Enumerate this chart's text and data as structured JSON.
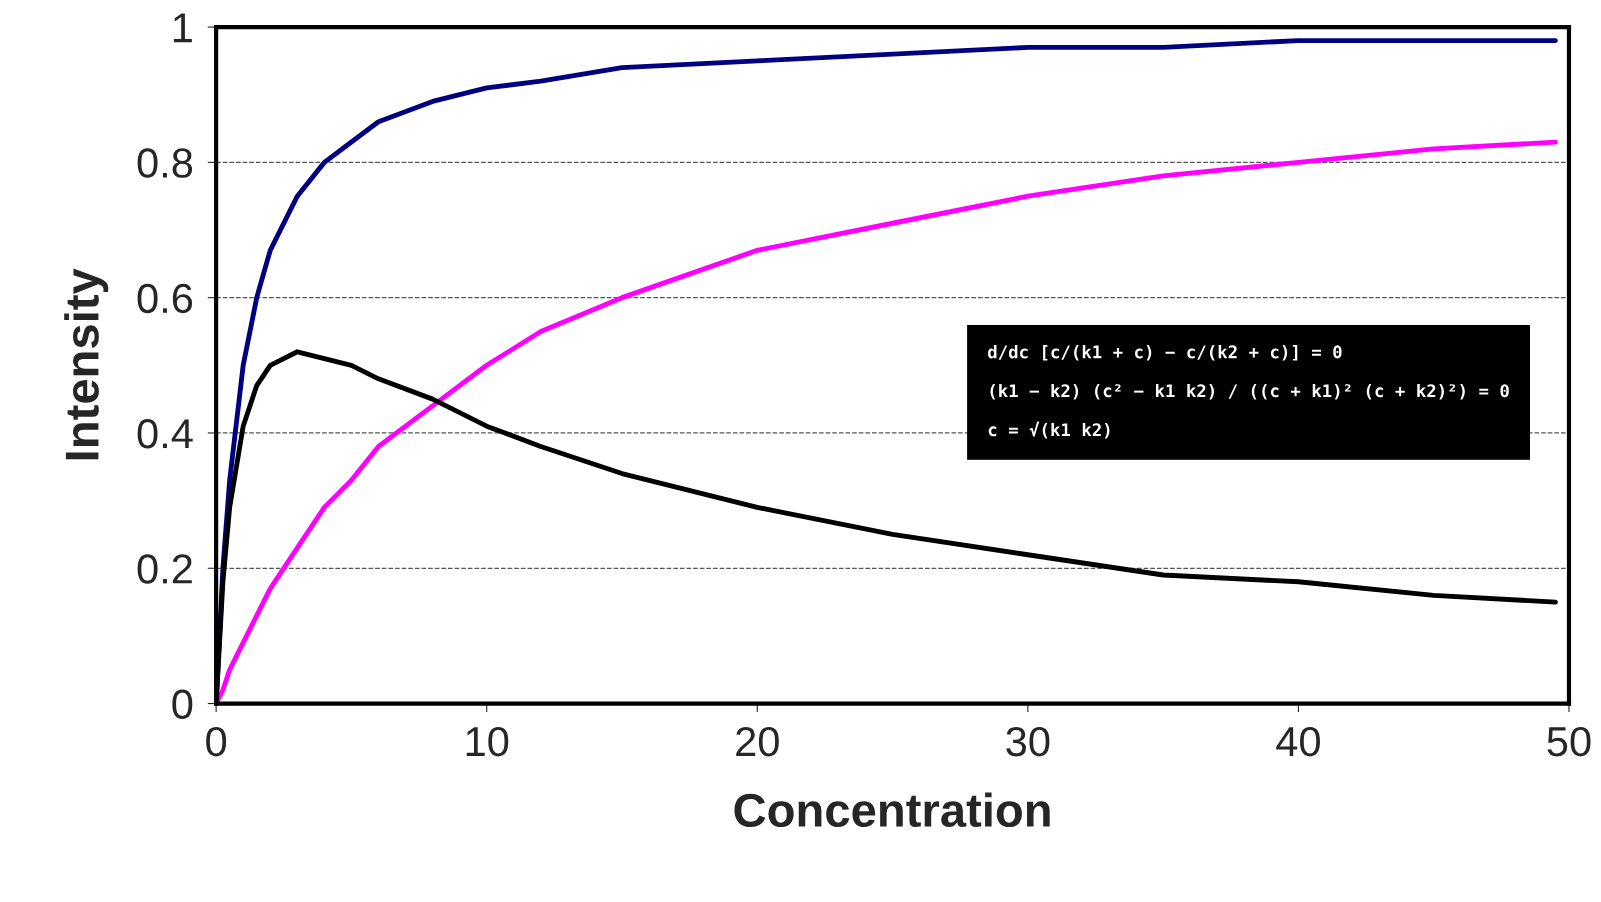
{
  "chart_data": {
    "type": "line",
    "xlabel": "Concentration",
    "ylabel": "Intensity",
    "x": [
      0,
      0.25,
      0.5,
      1,
      1.5,
      2,
      3,
      4,
      5,
      6,
      8,
      10,
      12,
      15,
      20,
      25,
      30,
      35,
      40,
      45,
      49.5
    ],
    "series": [
      {
        "color": "#000080",
        "values": [
          0,
          0.2,
          0.33,
          0.5,
          0.6,
          0.67,
          0.75,
          0.8,
          0.83,
          0.86,
          0.89,
          0.91,
          0.92,
          0.94,
          0.95,
          0.96,
          0.97,
          0.97,
          0.98,
          0.98,
          0.98
        ]
      },
      {
        "color": "#ff00ff",
        "values": [
          0,
          0.02,
          0.05,
          0.09,
          0.13,
          0.17,
          0.23,
          0.29,
          0.33,
          0.38,
          0.44,
          0.5,
          0.55,
          0.6,
          0.67,
          0.71,
          0.75,
          0.78,
          0.8,
          0.82,
          0.83
        ]
      },
      {
        "color": "#000000",
        "values": [
          0,
          0.18,
          0.29,
          0.41,
          0.47,
          0.5,
          0.52,
          0.51,
          0.5,
          0.48,
          0.45,
          0.41,
          0.38,
          0.34,
          0.29,
          0.25,
          0.22,
          0.19,
          0.18,
          0.16,
          0.15
        ]
      }
    ],
    "xlim": [
      0,
      50
    ],
    "xticks": [
      0,
      10,
      20,
      30,
      40,
      50
    ],
    "ylim": [
      0,
      1
    ],
    "yticks": [
      0,
      0.2,
      0.4,
      0.6,
      0.8,
      1
    ],
    "grid": "y",
    "legend": false,
    "annotations": [
      "d/dc [c/(k1 + c) − c/(k2 + c)] = 0",
      "(k1 − k2) (c² − k1 k2) / ((c + k1)² (c + k2)²) = 0",
      "c = √(k1 k2)"
    ]
  }
}
